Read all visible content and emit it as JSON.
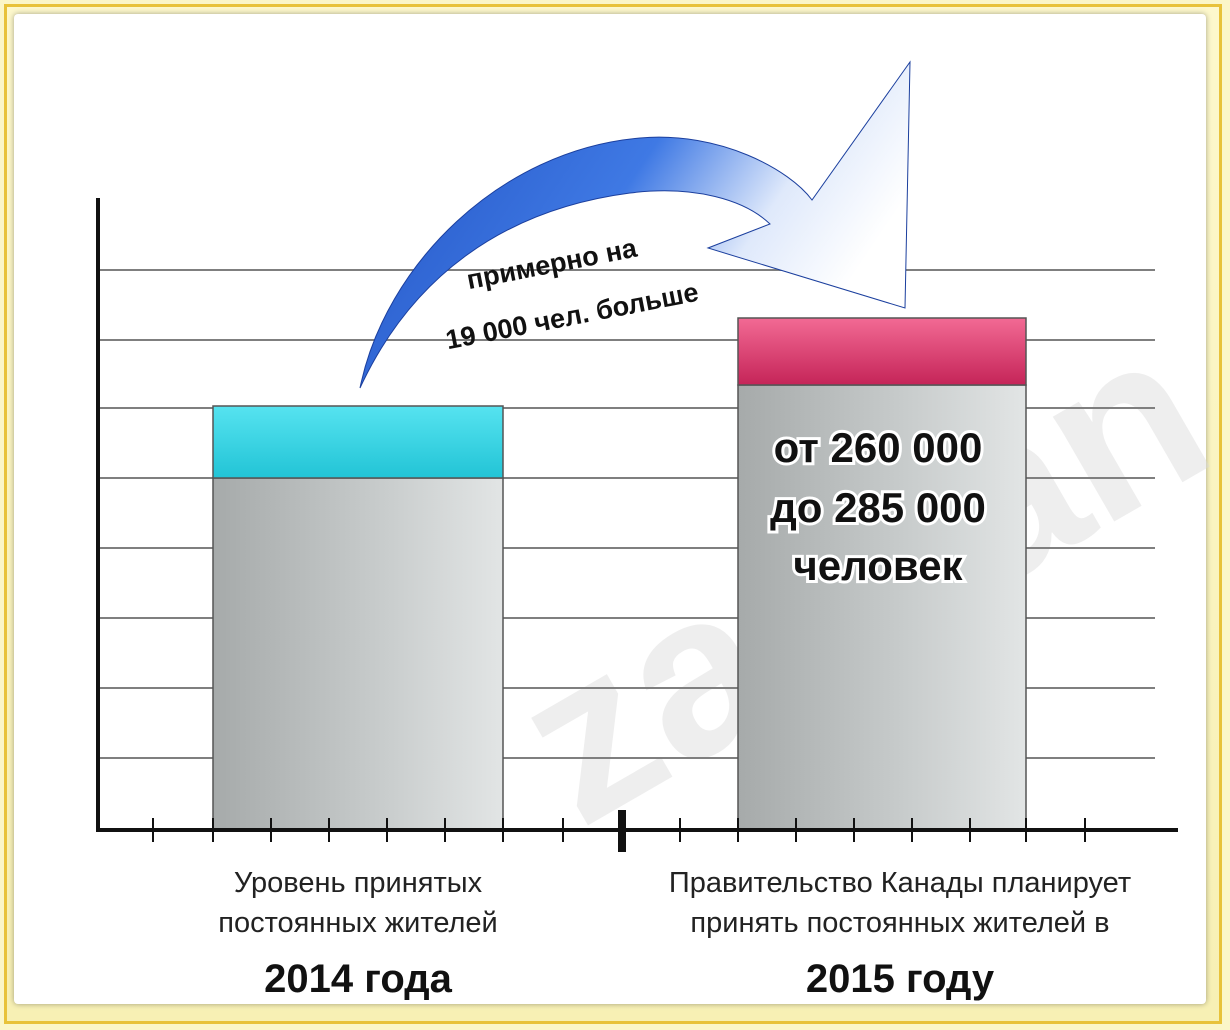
{
  "chart_data": {
    "type": "bar",
    "categories": [
      "2014 года",
      "2015 году"
    ],
    "category_captions": [
      [
        "Уровень принятых",
        "постоянных жителей"
      ],
      [
        "Правительство Канады планирует",
        "принять постоянных жителей в"
      ]
    ],
    "bar_label": [
      "от 260 000",
      "до 285 000",
      "человек"
    ],
    "arrow_label": [
      "примерно на",
      "19 000 чел. больше"
    ],
    "watermark": "zagran",
    "colors": {
      "bar_gray": "#b9bdbd",
      "cap_2014": "#35d6e6",
      "cap_2015": "#d8386c",
      "arrow": "#2f5fd0",
      "grid": "#777777"
    }
  }
}
